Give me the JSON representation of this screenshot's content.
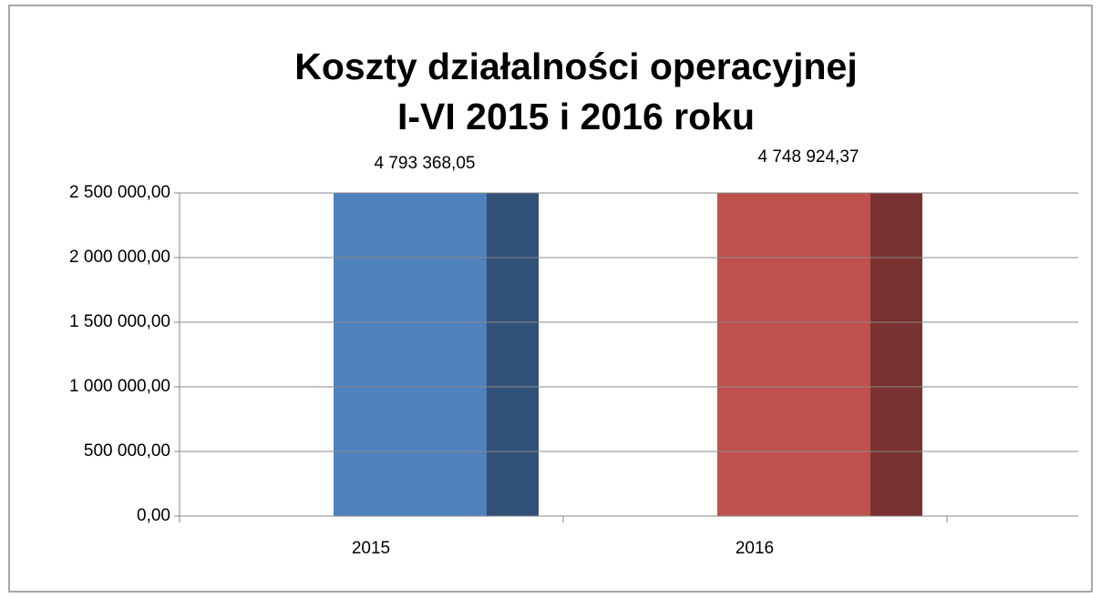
{
  "chart_data": {
    "type": "bar",
    "title": [
      "Koszty działalności operacyjnej",
      "I-VI 2015 i 2016 roku"
    ],
    "categories": [
      "2015",
      "2016"
    ],
    "values": [
      4793368.05,
      4748924.37
    ],
    "value_labels": [
      "4 793 368,05",
      "4 748 924,37"
    ],
    "colors": [
      "#4f81bd",
      "#c0504d"
    ],
    "ylim": [
      0,
      2500000
    ],
    "yticks": [
      {
        "value": 0,
        "label": "0,00"
      },
      {
        "value": 500000,
        "label": "500 000,00"
      },
      {
        "value": 1000000,
        "label": "1 000 000,00"
      },
      {
        "value": 1500000,
        "label": "1 500 000,00"
      },
      {
        "value": 2000000,
        "label": "2 000 000,00"
      },
      {
        "value": 2500000,
        "label": "2 500 000,00"
      }
    ],
    "grid": true
  }
}
